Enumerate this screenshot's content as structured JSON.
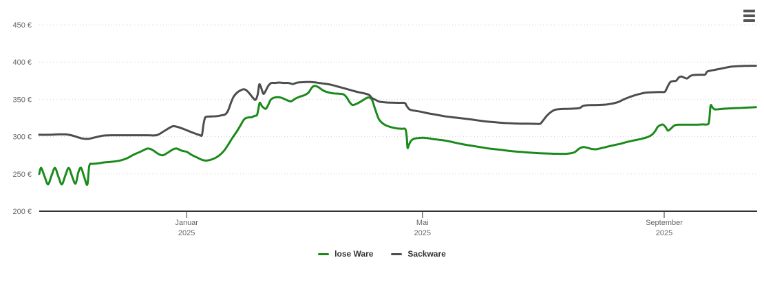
{
  "page": {
    "background": "#ffffff"
  },
  "menu": {
    "icon": "hamburger-menu",
    "color": "#555555"
  },
  "y_axis": {
    "tick_labels": [
      "200 €",
      "250 €",
      "300 €",
      "350 €",
      "400 €",
      "450 €"
    ],
    "label_color": "#666666",
    "grid_color": "#d4d4d4",
    "axis_color": "#333333"
  },
  "chart_data": {
    "type": "line",
    "title": "",
    "xlabel": "",
    "ylabel": "€",
    "x_unit": "days (day 0 = mid-October 2024, day 365 = mid-October 2025)",
    "xlim": [
      0,
      366
    ],
    "ylim": [
      200,
      450
    ],
    "y_tick_step": 50,
    "grid": "horizontal-dotted",
    "legend_position": "bottom-center",
    "x_ticks": [
      {
        "label": "Januar",
        "sublabel": "2025",
        "x": 75
      },
      {
        "label": "Mai",
        "sublabel": "2025",
        "x": 195
      },
      {
        "label": "September",
        "sublabel": "2025",
        "x": 318
      }
    ],
    "series": [
      {
        "name": "lose Ware",
        "color": "#1a8a1a",
        "points": [
          [
            0,
            250
          ],
          [
            1,
            258
          ],
          [
            2.8,
            246
          ],
          [
            4.5,
            236
          ],
          [
            6.3,
            248
          ],
          [
            8,
            258
          ],
          [
            9.8,
            246
          ],
          [
            11.5,
            236
          ],
          [
            13.3,
            248
          ],
          [
            15,
            258
          ],
          [
            16.8,
            246
          ],
          [
            18.5,
            237
          ],
          [
            19.9,
            252
          ],
          [
            21.3,
            258
          ],
          [
            23.1,
            244
          ],
          [
            24.5,
            236
          ],
          [
            25.5,
            261
          ],
          [
            27.3,
            263.5
          ],
          [
            29.7,
            264
          ],
          [
            33.2,
            265.5
          ],
          [
            37.7,
            266.5
          ],
          [
            41.2,
            268
          ],
          [
            44.7,
            271
          ],
          [
            48.2,
            276
          ],
          [
            51.7,
            280
          ],
          [
            55.2,
            284
          ],
          [
            57.7,
            282
          ],
          [
            60.5,
            277
          ],
          [
            62.9,
            275
          ],
          [
            65.7,
            279
          ],
          [
            68.2,
            283
          ],
          [
            69.9,
            284
          ],
          [
            72.7,
            281
          ],
          [
            75.1,
            279.5
          ],
          [
            77.9,
            275
          ],
          [
            80.7,
            271.5
          ],
          [
            83.2,
            268.5
          ],
          [
            85.6,
            268
          ],
          [
            88.4,
            270
          ],
          [
            91.2,
            274
          ],
          [
            93.7,
            280
          ],
          [
            96.1,
            289
          ],
          [
            98.2,
            298
          ],
          [
            100.3,
            306
          ],
          [
            102.4,
            315
          ],
          [
            104.2,
            323
          ],
          [
            105.9,
            325.5
          ],
          [
            108,
            326
          ],
          [
            109.8,
            328
          ],
          [
            110.8,
            329
          ],
          [
            111.5,
            337
          ],
          [
            112.2,
            345.5
          ],
          [
            113.3,
            341
          ],
          [
            114.3,
            338.5
          ],
          [
            115.4,
            337.5
          ],
          [
            116.8,
            344
          ],
          [
            117.8,
            349.5
          ],
          [
            119.9,
            352.5
          ],
          [
            122.7,
            352.5
          ],
          [
            125.1,
            350
          ],
          [
            126.9,
            348
          ],
          [
            128.3,
            347.5
          ],
          [
            130.4,
            351
          ],
          [
            132.5,
            353.5
          ],
          [
            134.9,
            355.5
          ],
          [
            137,
            359
          ],
          [
            138.8,
            366
          ],
          [
            140.2,
            368
          ],
          [
            141.9,
            366.5
          ],
          [
            144.4,
            362
          ],
          [
            146.8,
            359.5
          ],
          [
            149.6,
            358
          ],
          [
            152.4,
            357.5
          ],
          [
            154.9,
            356.5
          ],
          [
            156.6,
            352
          ],
          [
            158,
            346
          ],
          [
            159.4,
            342.5
          ],
          [
            161.1,
            343.5
          ],
          [
            163.6,
            347
          ],
          [
            165.7,
            350.5
          ],
          [
            167.4,
            352.5
          ],
          [
            169.2,
            350
          ],
          [
            170.9,
            337
          ],
          [
            172.7,
            324
          ],
          [
            174.4,
            318.5
          ],
          [
            176.5,
            315
          ],
          [
            179.3,
            312.5
          ],
          [
            182.1,
            311
          ],
          [
            184.6,
            310.5
          ],
          [
            186.3,
            310
          ],
          [
            187,
            300
          ],
          [
            187.4,
            285
          ],
          [
            188.1,
            289
          ],
          [
            189.1,
            294
          ],
          [
            190.5,
            297
          ],
          [
            192.6,
            298
          ],
          [
            195.1,
            298.5
          ],
          [
            197.5,
            298
          ],
          [
            201,
            296.5
          ],
          [
            204.5,
            295.5
          ],
          [
            208,
            294
          ],
          [
            211.5,
            292
          ],
          [
            215,
            290
          ],
          [
            218.4,
            288.5
          ],
          [
            221.9,
            287
          ],
          [
            225.4,
            285.5
          ],
          [
            228.9,
            284
          ],
          [
            232.4,
            283
          ],
          [
            235.9,
            282
          ],
          [
            240.5,
            280.5
          ],
          [
            245,
            279.5
          ],
          [
            249.9,
            278.5
          ],
          [
            254.5,
            277.8
          ],
          [
            259.7,
            277.3
          ],
          [
            263.9,
            277
          ],
          [
            268.5,
            277
          ],
          [
            272.3,
            279
          ],
          [
            274.8,
            284
          ],
          [
            276.9,
            286
          ],
          [
            279,
            285
          ],
          [
            281.1,
            283.5
          ],
          [
            283.2,
            283
          ],
          [
            286,
            284.5
          ],
          [
            289.1,
            286.5
          ],
          [
            292.3,
            288.5
          ],
          [
            295.8,
            290.5
          ],
          [
            299.3,
            293
          ],
          [
            302.8,
            295
          ],
          [
            306.3,
            297
          ],
          [
            309.1,
            299
          ],
          [
            311.5,
            302
          ],
          [
            313.3,
            307
          ],
          [
            314.7,
            313
          ],
          [
            316.1,
            315.5
          ],
          [
            317.5,
            316
          ],
          [
            318.9,
            312
          ],
          [
            319.9,
            308
          ],
          [
            321.3,
            310.5
          ],
          [
            322.7,
            314
          ],
          [
            324.1,
            315.8
          ],
          [
            326.9,
            316
          ],
          [
            330.4,
            316
          ],
          [
            333.9,
            316
          ],
          [
            337.4,
            316.3
          ],
          [
            340.2,
            316.5
          ],
          [
            340.9,
            322
          ],
          [
            341.6,
            341.5
          ],
          [
            342.6,
            339
          ],
          [
            343.7,
            336.5
          ],
          [
            345.8,
            336.8
          ],
          [
            348.9,
            337.5
          ],
          [
            352.4,
            338
          ],
          [
            357,
            338.5
          ],
          [
            361.2,
            339
          ],
          [
            364.7,
            339.5
          ]
        ]
      },
      {
        "name": "Sackware",
        "color": "#4d4d4d",
        "points": [
          [
            0,
            302.5
          ],
          [
            4.5,
            302.5
          ],
          [
            9.8,
            303
          ],
          [
            13.3,
            303
          ],
          [
            16.8,
            301.5
          ],
          [
            19.2,
            299.5
          ],
          [
            22,
            297.5
          ],
          [
            24.8,
            297
          ],
          [
            27.6,
            298.5
          ],
          [
            30.8,
            300.5
          ],
          [
            33.2,
            301.5
          ],
          [
            37.7,
            301.8
          ],
          [
            43,
            301.8
          ],
          [
            50,
            301.8
          ],
          [
            55.2,
            301.8
          ],
          [
            59.8,
            302
          ],
          [
            63.3,
            307
          ],
          [
            66.1,
            311.5
          ],
          [
            68.2,
            314
          ],
          [
            70.3,
            313
          ],
          [
            72.7,
            311
          ],
          [
            75.1,
            308.5
          ],
          [
            77.9,
            305.5
          ],
          [
            80,
            303.5
          ],
          [
            81.8,
            302
          ],
          [
            82.8,
            302
          ],
          [
            83.5,
            315
          ],
          [
            84.2,
            324
          ],
          [
            84.9,
            326.5
          ],
          [
            87.7,
            327
          ],
          [
            90.5,
            327.5
          ],
          [
            92.6,
            328.5
          ],
          [
            94.7,
            330
          ],
          [
            96.1,
            335
          ],
          [
            97.5,
            345
          ],
          [
            98.9,
            353.5
          ],
          [
            100.7,
            359
          ],
          [
            102.4,
            362
          ],
          [
            104.2,
            363.5
          ],
          [
            105.9,
            361
          ],
          [
            107.7,
            355.5
          ],
          [
            109.1,
            351
          ],
          [
            110.1,
            349.5
          ],
          [
            111.2,
            357
          ],
          [
            111.9,
            369.5
          ],
          [
            112.6,
            368
          ],
          [
            113.6,
            360
          ],
          [
            114.3,
            357.5
          ],
          [
            115.7,
            364
          ],
          [
            116.8,
            369
          ],
          [
            118.2,
            372
          ],
          [
            119.9,
            372
          ],
          [
            122,
            372.5
          ],
          [
            124.8,
            372
          ],
          [
            126.9,
            372
          ],
          [
            129,
            370.5
          ],
          [
            131.1,
            372.3
          ],
          [
            133.9,
            373
          ],
          [
            136.7,
            373.3
          ],
          [
            139.5,
            373
          ],
          [
            142.3,
            372
          ],
          [
            145.1,
            371
          ],
          [
            148.6,
            369.5
          ],
          [
            152.1,
            367
          ],
          [
            155.6,
            364.5
          ],
          [
            159,
            362
          ],
          [
            162.5,
            359.5
          ],
          [
            165.3,
            358
          ],
          [
            167.8,
            356
          ],
          [
            169.2,
            352
          ],
          [
            170.6,
            350
          ],
          [
            173,
            347
          ],
          [
            175.8,
            346
          ],
          [
            179.3,
            345.5
          ],
          [
            182.8,
            345.3
          ],
          [
            186,
            345
          ],
          [
            187,
            341
          ],
          [
            188.4,
            336.5
          ],
          [
            190.5,
            335
          ],
          [
            194,
            333.5
          ],
          [
            197.5,
            331.5
          ],
          [
            201.7,
            329.5
          ],
          [
            205.9,
            327.5
          ],
          [
            210.1,
            326
          ],
          [
            214.3,
            324.8
          ],
          [
            218.4,
            323.5
          ],
          [
            222.6,
            322
          ],
          [
            226.8,
            320.5
          ],
          [
            231,
            319.5
          ],
          [
            235.2,
            318.5
          ],
          [
            239.4,
            318
          ],
          [
            244,
            317.5
          ],
          [
            248.5,
            317.3
          ],
          [
            252.7,
            317.2
          ],
          [
            254.8,
            317.2
          ],
          [
            256.2,
            321
          ],
          [
            258.3,
            328
          ],
          [
            260.4,
            333
          ],
          [
            262.5,
            336
          ],
          [
            265.3,
            337
          ],
          [
            268.8,
            337.3
          ],
          [
            272.3,
            337.6
          ],
          [
            275.1,
            338.5
          ],
          [
            276.5,
            341
          ],
          [
            278.2,
            342
          ],
          [
            281.4,
            342.3
          ],
          [
            284.9,
            342.5
          ],
          [
            288.4,
            343
          ],
          [
            291.9,
            344.5
          ],
          [
            294.7,
            346.5
          ],
          [
            297.5,
            350
          ],
          [
            300.3,
            353
          ],
          [
            303.1,
            355.5
          ],
          [
            305.9,
            357.5
          ],
          [
            308.7,
            359
          ],
          [
            312.2,
            359.5
          ],
          [
            315.7,
            359.8
          ],
          [
            318.2,
            360
          ],
          [
            319.2,
            364
          ],
          [
            320.3,
            370
          ],
          [
            321.3,
            373.5
          ],
          [
            322.7,
            374.5
          ],
          [
            324.1,
            375
          ],
          [
            325.5,
            379.5
          ],
          [
            326.9,
            380.5
          ],
          [
            328.3,
            379
          ],
          [
            329.7,
            378
          ],
          [
            331.1,
            381
          ],
          [
            332.5,
            382.5
          ],
          [
            334.6,
            382.8
          ],
          [
            336.7,
            383
          ],
          [
            338.8,
            383.2
          ],
          [
            339.8,
            387
          ],
          [
            341.6,
            388.5
          ],
          [
            343.7,
            389.5
          ],
          [
            346.5,
            391
          ],
          [
            349.3,
            392.5
          ],
          [
            352.1,
            393.8
          ],
          [
            354.9,
            394.5
          ],
          [
            358.4,
            394.8
          ],
          [
            361.9,
            395
          ],
          [
            364.7,
            395
          ]
        ]
      }
    ]
  }
}
